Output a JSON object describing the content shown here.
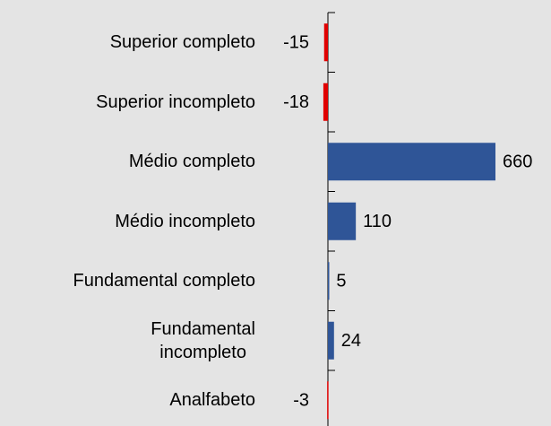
{
  "chart_data": {
    "type": "barh",
    "categories": [
      "Superior completo",
      "Superior incompleto",
      "Médio completo",
      "Médio incompleto",
      "Fundamental completo",
      "Fundamental\nincompleto",
      "Analfabeto"
    ],
    "values": [
      -15,
      -18,
      660,
      110,
      5,
      24,
      -3
    ],
    "colors": [
      "#e00000",
      "#e00000",
      "#2f5597",
      "#2f5597",
      "#2f5597",
      "#2f5597",
      "#e00000"
    ]
  }
}
